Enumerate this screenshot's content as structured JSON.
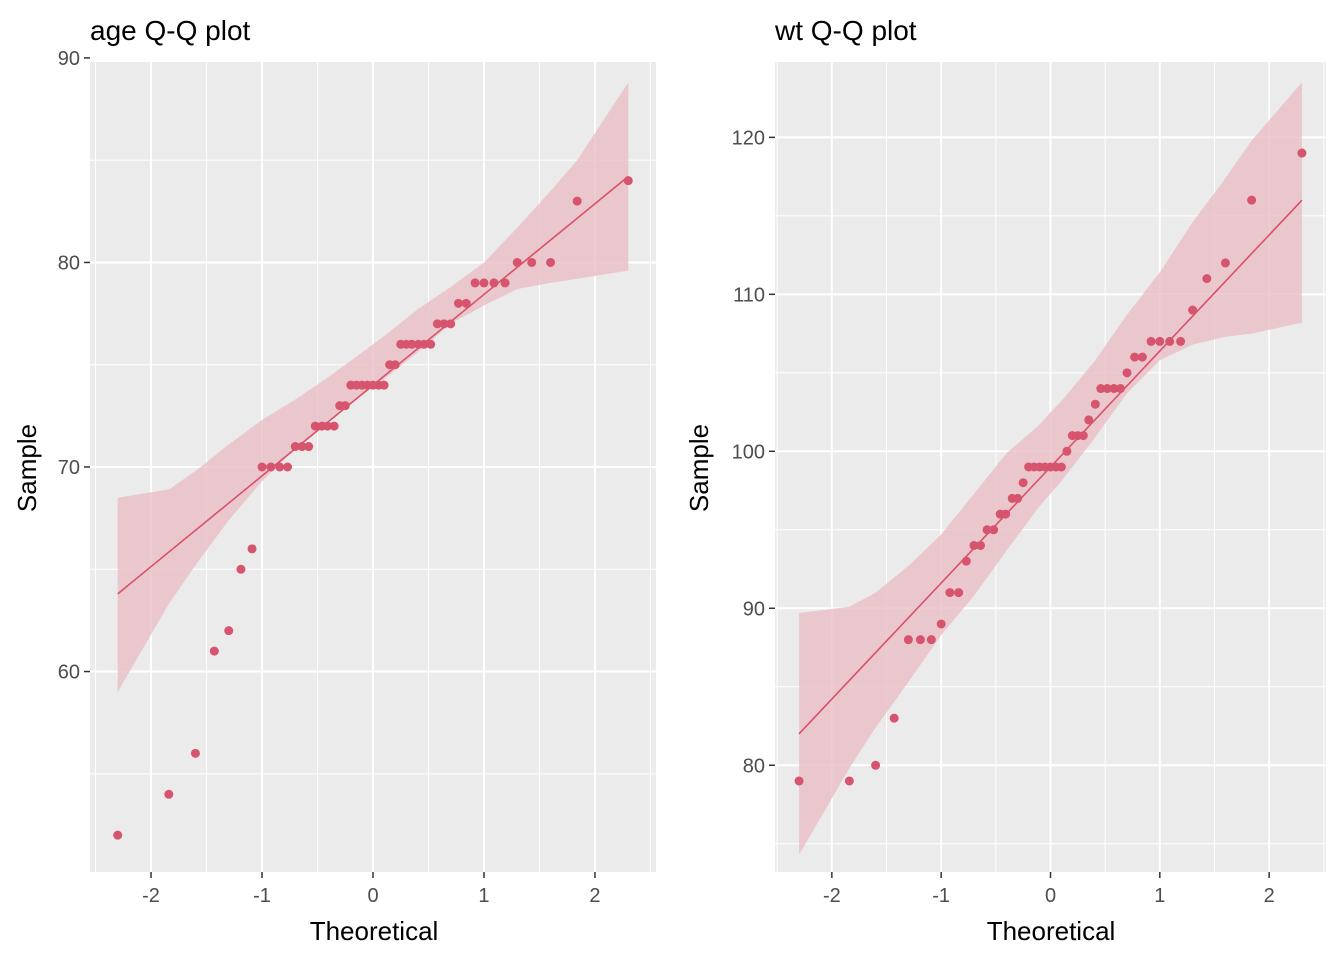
{
  "chart_data": [
    {
      "type": "scatter",
      "title": "age Q-Q plot",
      "xlabel": "Theoretical",
      "ylabel": "Sample",
      "xlim": [
        -2.55,
        2.55
      ],
      "ylim": [
        50.2,
        89.8
      ],
      "x_ticks": [
        -2,
        -1,
        0,
        1,
        2
      ],
      "x_tick_labels": [
        "-2",
        "-1",
        "0",
        "1",
        "2"
      ],
      "y_ticks": [
        60,
        70,
        80,
        90
      ],
      "y_tick_labels": [
        "60",
        "70",
        "80",
        "90"
      ],
      "grid": true,
      "points": {
        "x": [
          -2.3,
          -1.84,
          -1.6,
          -1.43,
          -1.3,
          -1.19,
          -1.09,
          -1.0,
          -0.92,
          -0.84,
          -0.77,
          -0.7,
          -0.64,
          -0.58,
          -0.52,
          -0.46,
          -0.41,
          -0.35,
          -0.3,
          -0.25,
          -0.2,
          -0.15,
          -0.1,
          -0.05,
          0.0,
          0.05,
          0.1,
          0.15,
          0.2,
          0.25,
          0.3,
          0.35,
          0.41,
          0.46,
          0.52,
          0.58,
          0.64,
          0.7,
          0.77,
          0.84,
          0.92,
          1.0,
          1.09,
          1.19,
          1.3,
          1.43,
          1.6,
          1.84,
          2.3
        ],
        "y": [
          52,
          54,
          56,
          61,
          62,
          65,
          66,
          70,
          70,
          70,
          70,
          71,
          71,
          71,
          72,
          72,
          72,
          72,
          73,
          73,
          74,
          74,
          74,
          74,
          74,
          74,
          74,
          75,
          75,
          76,
          76,
          76,
          76,
          76,
          76,
          77,
          77,
          77,
          78,
          78,
          79,
          79,
          79,
          79,
          80,
          80,
          80,
          83,
          84
        ]
      },
      "reference_line": {
        "x": [
          -2.3,
          2.3
        ],
        "y": [
          63.8,
          84.2
        ]
      },
      "confidence_band": {
        "x": [
          -2.3,
          -1.84,
          -1.6,
          -1.3,
          -1.0,
          -0.7,
          -0.4,
          -0.1,
          0.0,
          0.1,
          0.4,
          0.7,
          1.0,
          1.3,
          1.6,
          1.84,
          2.3
        ],
        "lower": [
          59.0,
          63.3,
          65.2,
          67.4,
          69.3,
          70.9,
          72.3,
          73.5,
          73.9,
          74.3,
          75.6,
          77.0,
          77.9,
          78.7,
          79.0,
          79.2,
          79.6
        ],
        "upper": [
          68.5,
          68.9,
          69.8,
          71.1,
          72.3,
          73.3,
          74.4,
          75.6,
          76.0,
          76.4,
          77.7,
          78.8,
          80.0,
          81.7,
          83.5,
          85.0,
          88.8
        ]
      },
      "colors": {
        "points": "#d6546e",
        "line": "#dc5066",
        "band": "#e8bec6",
        "panel": "#ebebeb",
        "grid": "#ffffff"
      }
    },
    {
      "type": "scatter",
      "title": "wt Q-Q plot",
      "xlabel": "Theoretical",
      "ylabel": "Sample",
      "xlim": [
        -2.52,
        2.52
      ],
      "ylim": [
        73.2,
        124.8
      ],
      "x_ticks": [
        -2,
        -1,
        0,
        1,
        2
      ],
      "x_tick_labels": [
        "-2",
        "-1",
        "0",
        "1",
        "2"
      ],
      "y_ticks": [
        80,
        90,
        100,
        110,
        120
      ],
      "y_tick_labels": [
        "80",
        "90",
        "100",
        "110",
        "120"
      ],
      "grid": true,
      "points": {
        "x": [
          -2.3,
          -1.84,
          -1.6,
          -1.43,
          -1.3,
          -1.19,
          -1.09,
          -1.0,
          -0.92,
          -0.84,
          -0.77,
          -0.7,
          -0.64,
          -0.58,
          -0.52,
          -0.46,
          -0.41,
          -0.35,
          -0.3,
          -0.25,
          -0.2,
          -0.15,
          -0.1,
          -0.05,
          0.0,
          0.05,
          0.1,
          0.15,
          0.2,
          0.25,
          0.3,
          0.35,
          0.41,
          0.46,
          0.52,
          0.58,
          0.64,
          0.7,
          0.77,
          0.84,
          0.92,
          1.0,
          1.09,
          1.19,
          1.3,
          1.43,
          1.6,
          1.84,
          2.3
        ],
        "y": [
          79,
          79,
          80,
          83,
          88,
          88,
          88,
          89,
          91,
          91,
          93,
          94,
          94,
          95,
          95,
          96,
          96,
          97,
          97,
          98,
          99,
          99,
          99,
          99,
          99,
          99,
          99,
          100,
          101,
          101,
          101,
          102,
          103,
          104,
          104,
          104,
          104,
          105,
          106,
          106,
          107,
          107,
          107,
          107,
          109,
          111,
          112,
          116,
          119
        ]
      },
      "reference_line": {
        "x": [
          -2.3,
          2.3
        ],
        "y": [
          82.0,
          116.0
        ]
      },
      "confidence_band": {
        "x": [
          -2.3,
          -1.84,
          -1.6,
          -1.3,
          -1.0,
          -0.7,
          -0.4,
          -0.1,
          0.0,
          0.1,
          0.4,
          0.7,
          1.0,
          1.3,
          1.6,
          1.84,
          2.3
        ],
        "lower": [
          74.3,
          79.8,
          82.4,
          85.3,
          88.3,
          90.8,
          93.7,
          96.5,
          97.3,
          98.1,
          100.8,
          103.7,
          105.8,
          106.8,
          107.3,
          107.5,
          108.2
        ],
        "upper": [
          89.7,
          90.1,
          91.0,
          92.7,
          94.7,
          97.3,
          99.9,
          101.7,
          102.5,
          103.2,
          105.7,
          108.7,
          111.4,
          114.6,
          117.4,
          119.8,
          123.5
        ]
      },
      "colors": {
        "points": "#d6546e",
        "line": "#dc5066",
        "band": "#e8bec6",
        "panel": "#ebebeb",
        "grid": "#ffffff"
      }
    }
  ]
}
